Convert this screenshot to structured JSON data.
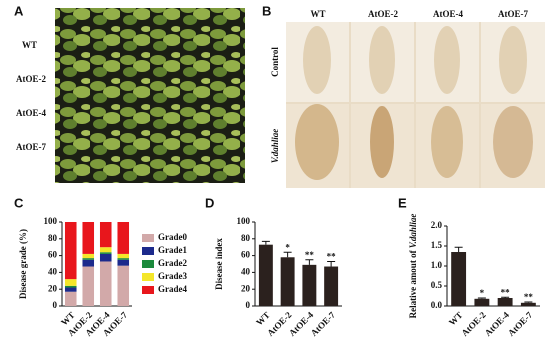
{
  "panel_labels": [
    "A",
    "B",
    "C",
    "D",
    "E"
  ],
  "photo_a": {
    "row_labels": [
      "WT",
      "AtOE-2",
      "AtOE-4",
      "AtOE-7"
    ]
  },
  "photo_b": {
    "column_labels": [
      "WT",
      "AtOE-2",
      "AtOE-4",
      "AtOE-7"
    ],
    "row_labels": [
      "Control",
      "V.dahliae"
    ]
  },
  "chart_data": [
    {
      "type": "stacked_bar",
      "y_label": "Disease grade (%)",
      "categories": [
        "WT",
        "AtOE-2",
        "AtOE-4",
        "AtOE-7"
      ],
      "series": [
        {
          "name": "Grade0",
          "color": "#d2a9a9",
          "values": [
            17,
            47,
            53,
            48
          ]
        },
        {
          "name": "Grade1",
          "color": "#1c2a8c",
          "values": [
            5,
            8,
            9,
            7
          ]
        },
        {
          "name": "Grade2",
          "color": "#1b8a3c",
          "values": [
            2,
            2,
            2,
            2
          ]
        },
        {
          "name": "Grade3",
          "color": "#f4e62a",
          "values": [
            8,
            5,
            6,
            5
          ]
        },
        {
          "name": "Grade4",
          "color": "#e8161c",
          "values": [
            68,
            38,
            30,
            38
          ]
        }
      ],
      "ylim": [
        0,
        100
      ],
      "yticks": [
        0,
        20,
        40,
        60,
        80,
        100
      ],
      "legend": "right"
    },
    {
      "type": "bar",
      "y_label": "Disease index",
      "color": "#2b211e",
      "categories": [
        "WT",
        "AtOE-2",
        "AtOE-4",
        "AtOE-7"
      ],
      "values": [
        73,
        58,
        49,
        47
      ],
      "errors": [
        4,
        6,
        6,
        6
      ],
      "significance": [
        null,
        "*",
        "**",
        "**"
      ],
      "ylim": [
        0,
        100
      ],
      "yticks": [
        0,
        20,
        40,
        60,
        80,
        100
      ]
    },
    {
      "type": "bar",
      "y_label": "Relative amout of",
      "y_label_italic": "V.dahliae",
      "color": "#2b211e",
      "categories": [
        "WT",
        "AtOE-2",
        "AtOE-4",
        "AtOE-7"
      ],
      "values": [
        1.35,
        0.18,
        0.2,
        0.08
      ],
      "errors": [
        0.12,
        0.02,
        0.02,
        0.02
      ],
      "significance": [
        null,
        "*",
        "**",
        "**"
      ],
      "ylim": [
        0,
        2
      ],
      "yticks": [
        {
          "value": 0,
          "label": "0.0"
        },
        0.5,
        {
          "value": 1,
          "label": "1.0"
        },
        1.5,
        {
          "value": 2,
          "label": "2.0"
        }
      ]
    }
  ]
}
